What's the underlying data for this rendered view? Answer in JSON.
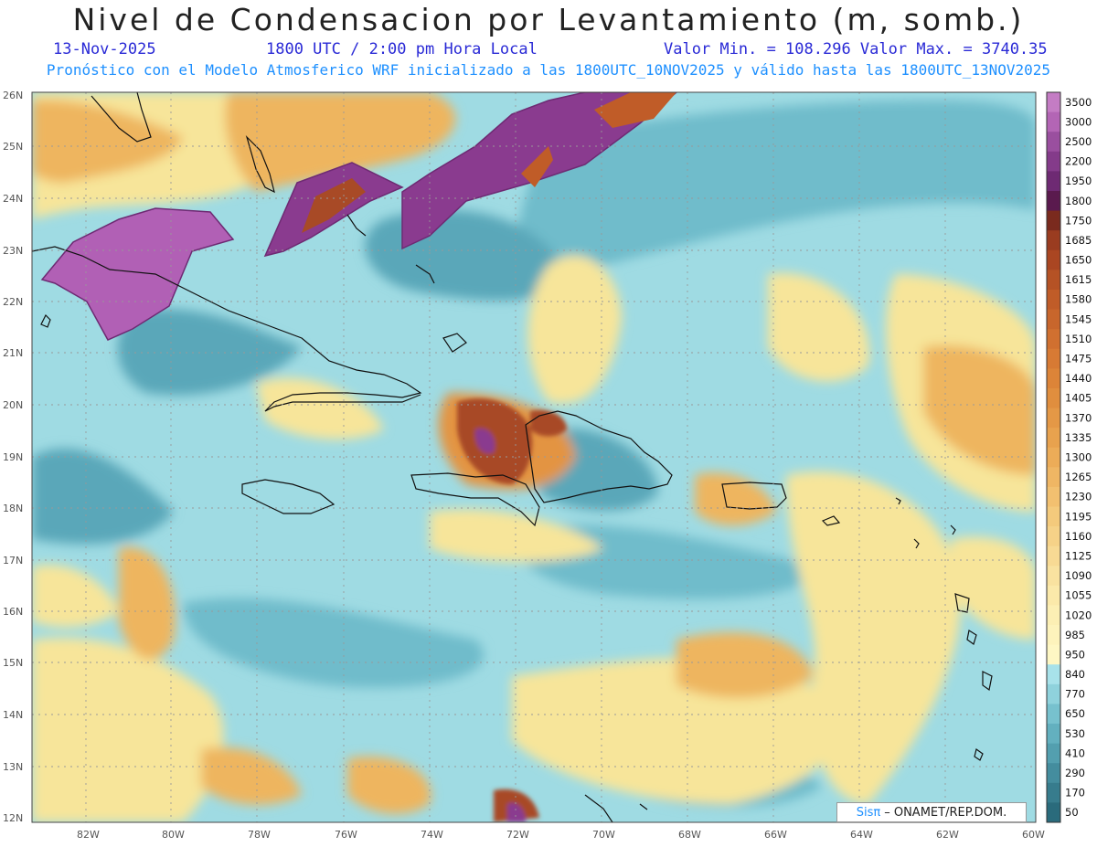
{
  "title": "Nivel de Condensacion por Levantamiento (m, somb.)",
  "date": "13-Nov-2025",
  "time": "1800 UTC / 2:00 pm Hora Local",
  "minmax": "Valor Min. = 108.296  Valor Max. = 3740.35",
  "forecast": "Pronóstico con el Modelo Atmosferico WRF inicializado a las 1800UTC_10NOV2025 y válido hasta las  1800UTC_13NOV2025",
  "credit": {
    "brand": "Sisπ",
    "text": "– ONAMET/REP.DOM."
  },
  "lat_labels": [
    "26N",
    "25N",
    "24N",
    "23N",
    "22N",
    "21N",
    "20N",
    "19N",
    "18N",
    "17N",
    "16N",
    "15N",
    "14N",
    "13N",
    "12N"
  ],
  "lon_labels": [
    "82W",
    "80W",
    "78W",
    "76W",
    "74W",
    "72W",
    "70W",
    "68W",
    "66W",
    "64W",
    "62W",
    "60W"
  ],
  "colorbar": {
    "labels": [
      "3500",
      "3000",
      "2500",
      "2200",
      "1950",
      "1800",
      "1750",
      "1685",
      "1650",
      "1615",
      "1580",
      "1545",
      "1510",
      "1475",
      "1440",
      "1405",
      "1370",
      "1335",
      "1300",
      "1265",
      "1230",
      "1195",
      "1160",
      "1125",
      "1090",
      "1055",
      "1020",
      "985",
      "950",
      "840",
      "770",
      "650",
      "530",
      "410",
      "290",
      "170",
      "50"
    ],
    "colors": [
      "#c47cc4",
      "#b365b5",
      "#9a4f9f",
      "#843b8a",
      "#6e2a73",
      "#5a1a4e",
      "#7a2a1e",
      "#9a3c20",
      "#aa4622",
      "#b55225",
      "#c05c28",
      "#c8662c",
      "#d07030",
      "#d77a34",
      "#dc8438",
      "#e08e3e",
      "#e49846",
      "#e8a24e",
      "#ecac58",
      "#efb664",
      "#f2c070",
      "#f4ca7c",
      "#f6d288",
      "#f8da94",
      "#f9e2a0",
      "#fbe9aa",
      "#fcefb4",
      "#fdf3bc",
      "#fef7c4",
      "#a8e2ea",
      "#8fd2dc",
      "#77c1ce",
      "#63b0bf",
      "#539faf",
      "#448d9e",
      "#377c8d",
      "#2a6b7c"
    ]
  },
  "field_colors": {
    "ocean_light": "#9fdbe3",
    "ocean_mid": "#6fbccb",
    "ocean_deep": "#4b9aae",
    "yellow": "#f7e59a",
    "orange": "#eeb55f",
    "orange_dark": "#e39443",
    "brown": "#a84a26",
    "purple": "#8a3b8f",
    "purple_light": "#b160b5"
  }
}
